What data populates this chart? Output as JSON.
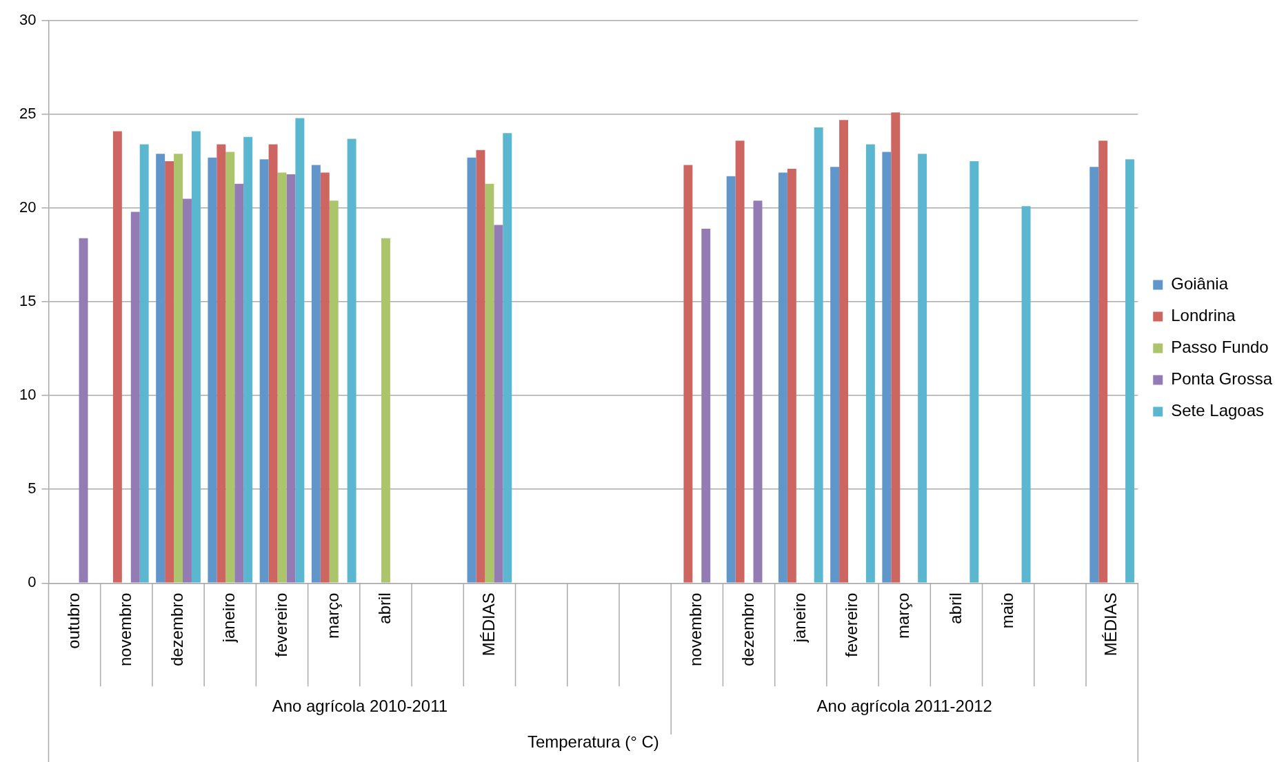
{
  "chart_data": {
    "type": "bar",
    "xlabel": "Temperatura (° C)",
    "categories": [
      "outubro",
      "novembro",
      "dezembro",
      "janeiro",
      "fevereiro",
      "março",
      "abril",
      null,
      "MÉDIAS",
      null,
      null,
      null,
      "novembro",
      "dezembro",
      "janeiro",
      "fevereiro",
      "março",
      "abril",
      "maio",
      null,
      "MÉDIAS"
    ],
    "series": [
      {
        "name": "Goiânia",
        "color": "#6096c9",
        "values": [
          null,
          null,
          22.9,
          22.7,
          22.6,
          22.3,
          null,
          null,
          22.7,
          null,
          null,
          null,
          null,
          21.7,
          21.9,
          22.2,
          23.0,
          null,
          null,
          null,
          22.2
        ]
      },
      {
        "name": "Londrina",
        "color": "#cd6560",
        "values": [
          null,
          24.1,
          22.5,
          23.4,
          23.4,
          21.9,
          null,
          null,
          23.1,
          null,
          null,
          null,
          22.3,
          23.6,
          22.1,
          24.7,
          25.1,
          null,
          null,
          null,
          23.6
        ]
      },
      {
        "name": "Passo Fundo",
        "color": "#acc46c",
        "values": [
          null,
          null,
          22.9,
          23.0,
          21.9,
          20.4,
          18.4,
          null,
          21.3,
          null,
          null,
          null,
          null,
          null,
          null,
          null,
          null,
          null,
          null,
          null,
          null
        ]
      },
      {
        "name": "Ponta Grossa",
        "color": "#937cb4",
        "values": [
          18.4,
          19.8,
          20.5,
          21.3,
          21.8,
          null,
          null,
          null,
          19.1,
          null,
          null,
          null,
          18.9,
          20.4,
          null,
          null,
          null,
          null,
          null,
          null,
          null
        ]
      },
      {
        "name": "Sete Lagoas",
        "color": "#5bb7d0",
        "values": [
          null,
          23.4,
          24.1,
          23.8,
          24.8,
          23.7,
          null,
          null,
          24.0,
          null,
          null,
          null,
          null,
          null,
          24.3,
          23.4,
          22.9,
          22.5,
          20.1,
          null,
          22.6
        ]
      }
    ],
    "annotations": [
      "Ano agrícola 2010-2011",
      "Ano agrícola 2011-2012"
    ],
    "ylim": [
      0,
      30
    ],
    "yticks": [
      0,
      5,
      10,
      15,
      20,
      25,
      30
    ],
    "grid": "y",
    "legend": "right"
  }
}
